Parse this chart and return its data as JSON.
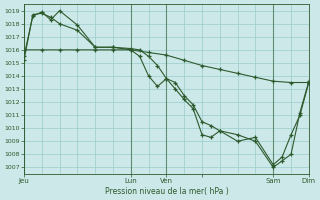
{
  "xlabel": "Pression niveau de la mer( hPa )",
  "bg_color": "#cce8e8",
  "grid_color": "#99cccc",
  "line_color": "#2d5a2d",
  "vline_color": "#2d5a2d",
  "ylim": [
    1006.5,
    1019.5
  ],
  "yticks": [
    1007,
    1008,
    1009,
    1010,
    1011,
    1012,
    1013,
    1014,
    1015,
    1016,
    1017,
    1018,
    1019
  ],
  "xlim": [
    0,
    96
  ],
  "xtick_positions": [
    0,
    36,
    48,
    60,
    84,
    96
  ],
  "xtick_labels": [
    "Jeu",
    "Lun",
    "Ven",
    "",
    "Sam",
    "Dim"
  ],
  "vline_positions": [
    0,
    36,
    48,
    84
  ],
  "line1": {
    "x": [
      0,
      6,
      12,
      18,
      24,
      30,
      36,
      42,
      48,
      54,
      60,
      66,
      72,
      78,
      84,
      90,
      96
    ],
    "y": [
      1016.0,
      1016.0,
      1016.0,
      1016.0,
      1016.0,
      1016.0,
      1016.0,
      1015.8,
      1015.6,
      1015.2,
      1014.8,
      1014.5,
      1014.2,
      1013.9,
      1013.6,
      1013.5,
      1013.5
    ]
  },
  "line2": {
    "x": [
      0,
      3,
      6,
      9,
      12,
      18,
      24,
      30,
      36,
      39,
      42,
      45,
      48,
      51,
      54,
      57,
      60,
      63,
      66,
      72,
      78,
      84,
      87,
      90,
      93,
      96
    ],
    "y": [
      1015.2,
      1018.7,
      1018.8,
      1018.5,
      1018.0,
      1017.5,
      1016.2,
      1016.2,
      1016.0,
      1015.5,
      1014.0,
      1013.2,
      1013.8,
      1013.0,
      1012.2,
      1011.5,
      1009.5,
      1009.3,
      1009.8,
      1009.0,
      1009.3,
      1007.2,
      1007.8,
      1009.5,
      1011.0,
      1013.5
    ]
  },
  "line3": {
    "x": [
      0,
      3,
      6,
      9,
      12,
      18,
      24,
      30,
      36,
      39,
      42,
      45,
      48,
      51,
      54,
      57,
      60,
      63,
      66,
      72,
      78,
      84,
      87,
      90,
      93,
      96
    ],
    "y": [
      1015.5,
      1018.6,
      1018.9,
      1018.3,
      1019.0,
      1017.9,
      1016.2,
      1016.2,
      1016.1,
      1016.0,
      1015.5,
      1014.8,
      1013.8,
      1013.5,
      1012.5,
      1011.8,
      1010.5,
      1010.2,
      1009.8,
      1009.5,
      1009.0,
      1007.0,
      1007.5,
      1008.0,
      1011.2,
      1013.6
    ]
  }
}
